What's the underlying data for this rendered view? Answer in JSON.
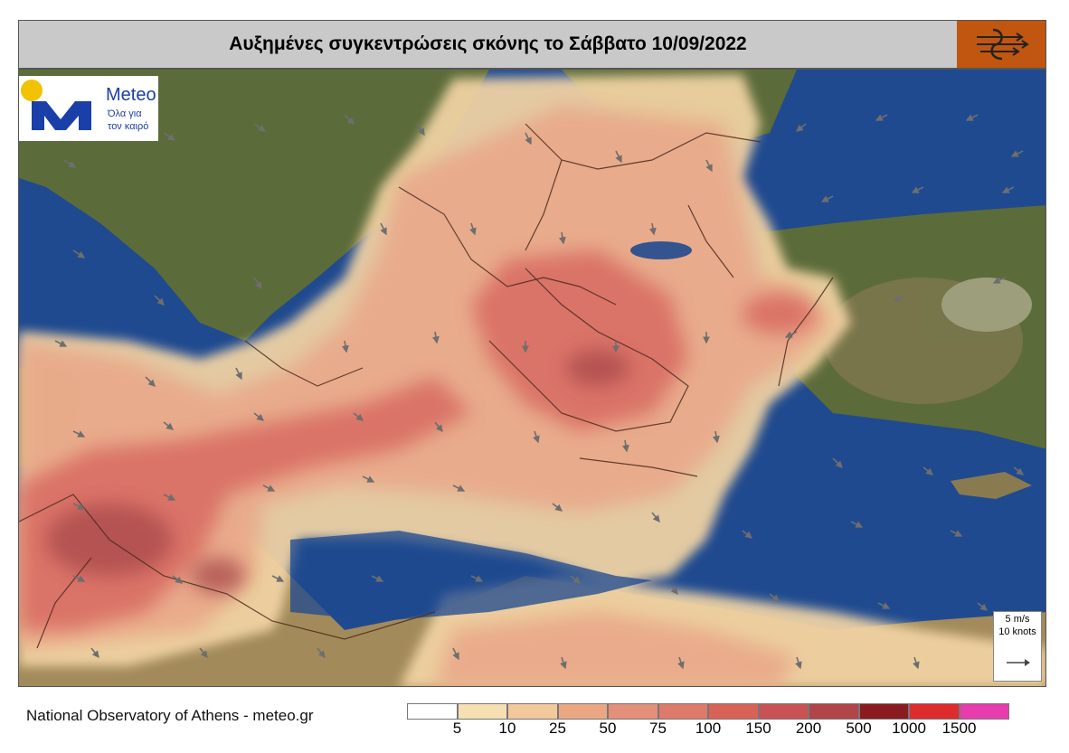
{
  "title": "Αυξημένες συγκεντρώσεις σκόνης το Σάββατο 10/09/2022",
  "logo": {
    "brand": "Meteo",
    "tagline_line1": "Όλα για",
    "tagline_line2": "τον καιρό",
    "icon": "sun-m-logo"
  },
  "title_logo_icon": "wind-dust-symbol-icon",
  "footer": {
    "source": "National Observatory of Athens - meteo.gr"
  },
  "wind_key": {
    "speed": "5 m/s",
    "knots": "10 knots",
    "icon": "arrow-right-icon"
  },
  "legend": {
    "colors": [
      "#ffffff",
      "#f6dfb2",
      "#f3c89a",
      "#eaa882",
      "#e38f7a",
      "#dd7a6a",
      "#d96257",
      "#c95252",
      "#b24548",
      "#8a1b1f",
      "#dd2c2c",
      "#e63cae"
    ],
    "labels": [
      "5",
      "10",
      "25",
      "50",
      "75",
      "100",
      "150",
      "200",
      "500",
      "1000",
      "1500"
    ]
  },
  "map_colors": {
    "sea": "#1f4a8f",
    "land": "#5c6b3a",
    "dust_low": "#f2d4a4",
    "dust_mid": "#e9a889",
    "dust_high": "#d86b62",
    "dust_peak": "#a8484c",
    "border": "#4a2a1f",
    "arrow": "#6e6e6e"
  }
}
